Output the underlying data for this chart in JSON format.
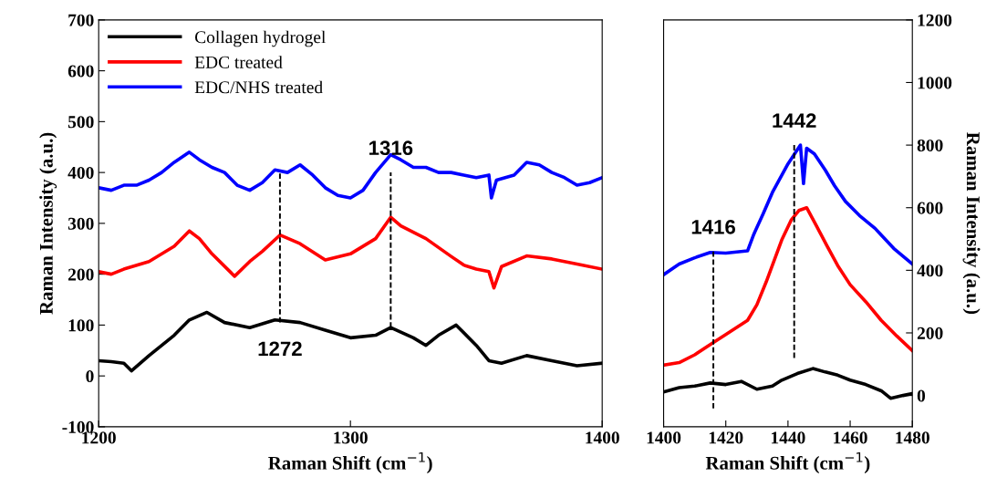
{
  "chart_data": [
    {
      "type": "line",
      "xlabel": "Raman Shift (cm$^{−1}$)",
      "ylabel": "Raman Intensity (a.u.)",
      "xlim": [
        1200,
        1400
      ],
      "xticks": [
        1200,
        1300,
        1400
      ],
      "ylim": [
        -100,
        700
      ],
      "yticks": [
        -100,
        0,
        100,
        200,
        300,
        400,
        500,
        600,
        700
      ],
      "grid": false,
      "legend": "top left",
      "marker": "none",
      "line_style": "solid",
      "series": [
        {
          "name": "Collagen hydrogel",
          "color": "#000000",
          "x": [
            1200,
            1205,
            1210,
            1213,
            1220,
            1230,
            1236,
            1243,
            1250,
            1260,
            1270,
            1280,
            1290,
            1300,
            1310,
            1316,
            1325,
            1330,
            1335,
            1342,
            1350,
            1355,
            1360,
            1370,
            1380,
            1390,
            1400
          ],
          "values": [
            30,
            28,
            25,
            10,
            40,
            80,
            110,
            125,
            105,
            95,
            110,
            105,
            90,
            75,
            80,
            95,
            75,
            60,
            80,
            100,
            60,
            30,
            25,
            40,
            30,
            20,
            25
          ]
        },
        {
          "name": "EDC treated",
          "color": "#ff0000",
          "x": [
            1200,
            1205,
            1210,
            1220,
            1230,
            1236,
            1240,
            1245,
            1254,
            1260,
            1265,
            1272,
            1280,
            1290,
            1300,
            1310,
            1316,
            1320,
            1330,
            1340,
            1345,
            1350,
            1355,
            1357,
            1360,
            1370,
            1380,
            1390,
            1400
          ],
          "values": [
            205,
            200,
            210,
            225,
            255,
            285,
            270,
            240,
            196,
            225,
            245,
            277,
            260,
            228,
            240,
            270,
            312,
            295,
            270,
            235,
            218,
            210,
            205,
            173,
            215,
            236,
            230,
            220,
            210
          ]
        },
        {
          "name": "EDC/NHS treated",
          "color": "#0000ff",
          "x": [
            1200,
            1205,
            1210,
            1215,
            1220,
            1225,
            1230,
            1236,
            1240,
            1245,
            1250,
            1255,
            1260,
            1265,
            1270,
            1275,
            1280,
            1285,
            1290,
            1295,
            1300,
            1305,
            1310,
            1316,
            1320,
            1325,
            1330,
            1335,
            1340,
            1345,
            1350,
            1355,
            1356,
            1358,
            1365,
            1370,
            1375,
            1380,
            1385,
            1390,
            1395,
            1400
          ],
          "values": [
            370,
            365,
            375,
            375,
            385,
            400,
            420,
            440,
            425,
            410,
            400,
            375,
            365,
            380,
            405,
            400,
            415,
            395,
            370,
            355,
            350,
            365,
            400,
            435,
            425,
            410,
            410,
            400,
            400,
            395,
            390,
            395,
            350,
            385,
            395,
            420,
            415,
            400,
            390,
            375,
            380,
            390
          ]
        },
        {
          "type": "line",
          "color": "#000000",
          "line_style": "dashed",
          "x": [
            1272,
            1272
          ],
          "values": [
            105,
            400
          ]
        },
        {
          "type": "line",
          "color": "#000000",
          "line_style": "dashed",
          "x": [
            1316,
            1316
          ],
          "values": [
            95,
            400
          ]
        }
      ],
      "annotations": [
        {
          "text": "1316",
          "x": 1316,
          "y": 400
        },
        {
          "text": "1272",
          "x": 1272,
          "y": 105
        }
      ]
    },
    {
      "type": "line",
      "xlabel": "Raman Shift (cm$^{−1}$)",
      "ylabel": "Raman Intensity (a.u.)",
      "xlim": [
        1400,
        1480
      ],
      "xticks": [
        1400,
        1420,
        1440,
        1460,
        1480
      ],
      "ylim": [
        -100,
        1200
      ],
      "yticks": [
        0,
        200,
        400,
        600,
        800,
        1000,
        1200
      ],
      "grid": false,
      "legend": false,
      "marker": "none",
      "line_style": "solid",
      "series": [
        {
          "color": "#000000",
          "x": [
            1400,
            1405,
            1410,
            1415,
            1420,
            1425,
            1430,
            1435,
            1438,
            1443,
            1448,
            1452,
            1456,
            1460,
            1465,
            1470,
            1473,
            1477,
            1480
          ],
          "values": [
            11,
            25,
            30,
            40,
            35,
            45,
            20,
            30,
            49,
            70,
            86,
            75,
            65,
            49,
            35,
            15,
            -9,
            0,
            6
          ]
        },
        {
          "color": "#ff0000",
          "x": [
            1400,
            1405,
            1410,
            1415,
            1420,
            1427,
            1430,
            1433,
            1438,
            1441,
            1443.5,
            1446,
            1449,
            1452.6,
            1456,
            1460,
            1465,
            1470,
            1475,
            1480
          ],
          "values": [
            97,
            105,
            130,
            163,
            195,
            240,
            290,
            363,
            497,
            560,
            591,
            600,
            545,
            477,
            415,
            354,
            300,
            240,
            190,
            143
          ]
        },
        {
          "color": "#0000ff",
          "x": [
            1400,
            1405,
            1410,
            1415,
            1420,
            1427,
            1429,
            1432,
            1435,
            1440,
            1444,
            1445,
            1446,
            1448.5,
            1452,
            1455,
            1458.5,
            1463,
            1468,
            1474,
            1480
          ],
          "values": [
            386,
            420,
            440,
            457,
            455,
            462,
            515,
            580,
            649,
            740,
            800,
            677,
            790,
            772,
            720,
            670,
            620,
            575,
            534,
            470,
            420
          ]
        },
        {
          "type": "line",
          "color": "#000000",
          "line_style": "dashed",
          "x": [
            1416,
            1416
          ],
          "values": [
            460,
            -50
          ]
        },
        {
          "type": "line",
          "color": "#000000",
          "line_style": "dashed",
          "x": [
            1442,
            1442
          ],
          "values": [
            120,
            800
          ]
        }
      ],
      "annotations": [
        {
          "text": "1416",
          "x": 1416,
          "y": 460
        },
        {
          "text": "1442",
          "x": 1442,
          "y": 800
        }
      ]
    }
  ]
}
